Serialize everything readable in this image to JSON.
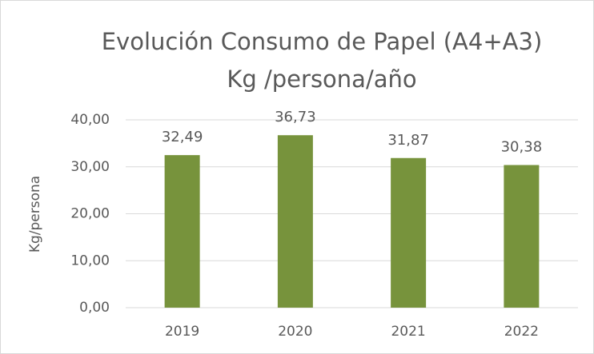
{
  "chart_data": {
    "type": "bar",
    "title": [
      "Evolución Consumo de Papel (A4+A3)",
      "Kg /persona/año"
    ],
    "y_label": "Kg/persona",
    "categories": [
      "2019",
      "2020",
      "2021",
      "2022"
    ],
    "values": [
      32.49,
      36.73,
      31.87,
      30.38
    ],
    "value_labels": [
      "32,49",
      "36,73",
      "31,87",
      "30,38"
    ],
    "color": "#77933c",
    "ylim": [
      0,
      40
    ],
    "yticks": [
      {
        "value": 0,
        "label": "0,00"
      },
      {
        "value": 10,
        "label": "10,00"
      },
      {
        "value": 20,
        "label": "20,00"
      },
      {
        "value": 30,
        "label": "30,00"
      },
      {
        "value": 40,
        "label": "40,00"
      }
    ],
    "grid": true
  }
}
